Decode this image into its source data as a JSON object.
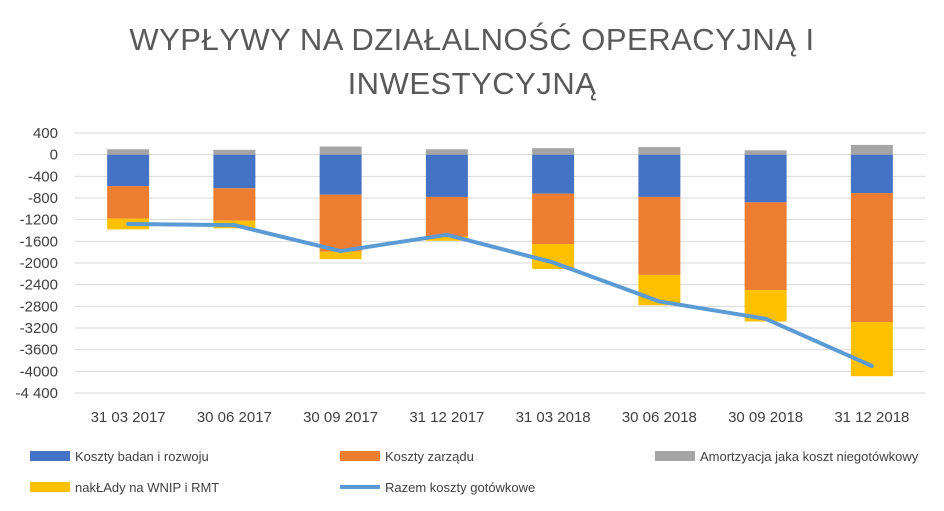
{
  "chart_data": {
    "type": "bar",
    "title_lines": [
      "WYPŁYWY NA DZIAŁALNOŚĆ OPERACYJNĄ I",
      "INWESTYCYJNĄ"
    ],
    "categories": [
      "31 03 2017",
      "30 06 2017",
      "30 09 2017",
      "31 12 2017",
      "31 03 2018",
      "30 06 2018",
      "30 09 2018",
      "31 12 2018"
    ],
    "y_ticks": [
      "400",
      "0",
      "-400",
      "-800",
      "-1200",
      "-1600",
      "-2000",
      "-2400",
      "-2800",
      "-3200",
      "-3600",
      "-4000",
      "-4 400"
    ],
    "ylim": [
      -4400,
      400
    ],
    "grid": true,
    "legend_position": "bottom",
    "series": [
      {
        "name": "Koszty badan i rozwoju",
        "kind": "bar",
        "color": "#4472C4",
        "values": [
          -580,
          -620,
          -740,
          -780,
          -720,
          -780,
          -880,
          -710
        ]
      },
      {
        "name": "Koszty zarządu",
        "kind": "bar",
        "color": "#ED7D31",
        "values": [
          -600,
          -600,
          -1050,
          -730,
          -930,
          -1440,
          -1620,
          -2380
        ]
      },
      {
        "name": "Amortzyacja jaka koszt niegotówkowy",
        "kind": "bar",
        "color": "#A5A5A5",
        "values": [
          100,
          90,
          150,
          100,
          120,
          140,
          80,
          180
        ]
      },
      {
        "name": "nakŁAdy na WNIP i RMT",
        "kind": "bar",
        "color": "#FFC000",
        "values": [
          -200,
          -140,
          -140,
          -80,
          -460,
          -560,
          -580,
          -1000
        ]
      },
      {
        "name": "Razem koszty gotówkowe",
        "kind": "line",
        "color": "#5B9BD5",
        "values": [
          -1280,
          -1300,
          -1780,
          -1480,
          -1990,
          -2710,
          -3030,
          -3900
        ]
      }
    ]
  }
}
